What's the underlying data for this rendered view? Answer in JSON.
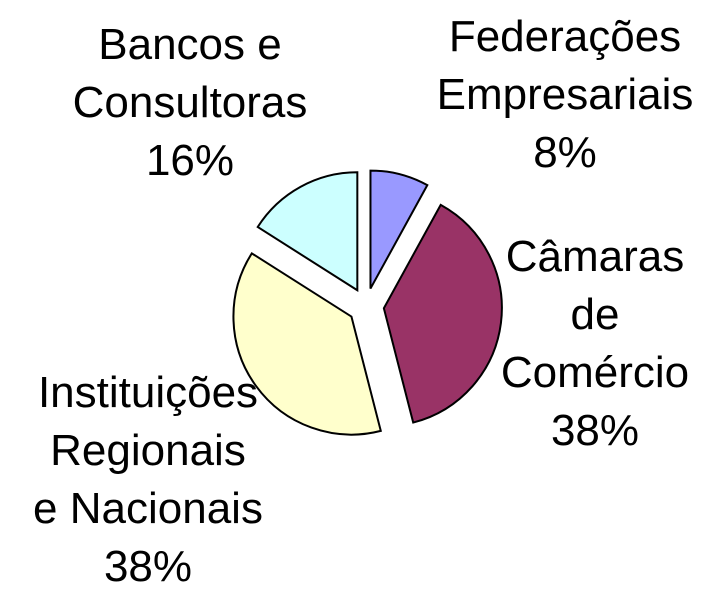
{
  "chart_data": {
    "type": "pie",
    "categories": [
      "Federações Empresariais",
      "Câmaras de Comércio",
      "Instituições Regionais e Nacionais",
      "Bancos e Consultoras"
    ],
    "values": [
      8,
      38,
      38,
      16
    ],
    "value_labels": [
      "8%",
      "38%",
      "38%",
      "16%"
    ],
    "colors": [
      "#9999ff",
      "#993366",
      "#ffffcc",
      "#ccffff"
    ]
  }
}
